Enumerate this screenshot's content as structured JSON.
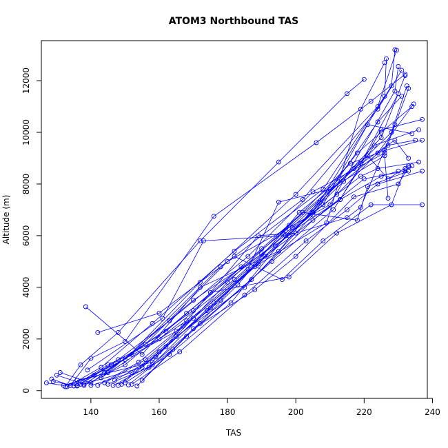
{
  "chart_data": {
    "type": "line",
    "title": "ATOM3 Northbound TAS",
    "xlabel": "TAS",
    "ylabel": "Altitude (m)",
    "xlim": [
      125.5,
      238.5
    ],
    "ylim": [
      -300,
      13550
    ],
    "xticks": [
      "140",
      "160",
      "180",
      "200",
      "220",
      "240"
    ],
    "xtick_values": [
      140,
      160,
      180,
      200,
      220,
      240
    ],
    "yticks": [
      "0",
      "2000",
      "4000",
      "6000",
      "8000",
      "10000",
      "12000"
    ],
    "ytick_values": [
      0,
      2000,
      4000,
      6000,
      8000,
      10000,
      12000
    ],
    "series_color": "#0000ff",
    "marker": "open-circle",
    "series": [
      {
        "x": [
          127,
          132,
          145,
          170,
          198,
          225,
          232
        ],
        "y": [
          300,
          200,
          700,
          3500,
          6000,
          9800,
          12200
        ]
      },
      {
        "x": [
          128.5,
          134,
          150,
          172,
          200,
          224,
          229.5
        ],
        "y": [
          450,
          200,
          1200,
          4200,
          7600,
          11000,
          13180
        ]
      },
      {
        "x": [
          129,
          136,
          155,
          175,
          205,
          228,
          229
        ],
        "y": [
          350,
          180,
          900,
          3200,
          6900,
          11800,
          13200
        ]
      },
      {
        "x": [
          130,
          138,
          152,
          178,
          208,
          226,
          226.5
        ],
        "y": [
          600,
          250,
          1400,
          4800,
          7800,
          11400,
          12850
        ]
      },
      {
        "x": [
          131,
          140,
          156,
          180,
          210,
          229,
          230
        ],
        "y": [
          700,
          300,
          1800,
          5000,
          7200,
          11600,
          12550
        ]
      },
      {
        "x": [
          132.5,
          137,
          148,
          172,
          195,
          215,
          220
        ],
        "y": [
          150,
          1000,
          2250,
          5800,
          8850,
          11500,
          12050
        ]
      },
      {
        "x": [
          133,
          143,
          158,
          182,
          202,
          224,
          231
        ],
        "y": [
          150,
          900,
          2600,
          5400,
          7400,
          10900,
          12400
        ]
      },
      {
        "x": [
          134,
          140,
          150,
          176,
          206,
          222,
          232
        ],
        "y": [
          200,
          1250,
          1900,
          6750,
          9600,
          11200,
          12250
        ]
      },
      {
        "x": [
          135,
          145,
          160,
          182,
          207,
          228,
          232.5
        ],
        "y": [
          180,
          1000,
          2000,
          4300,
          7300,
          10000,
          11800
        ]
      },
      {
        "x": [
          136,
          148,
          163,
          186,
          205,
          226,
          233
        ],
        "y": [
          200,
          1200,
          2700,
          5200,
          7700,
          9200,
          11700
        ]
      },
      {
        "x": [
          137,
          146,
          162,
          184,
          197,
          219,
          230
        ],
        "y": [
          250,
          1000,
          2300,
          4800,
          6200,
          8800,
          11500
        ]
      },
      {
        "x": [
          138,
          150,
          168,
          190,
          212,
          224,
          234.5
        ],
        "y": [
          200,
          1000,
          3000,
          5300,
          7600,
          9200,
          11100
        ]
      },
      {
        "x": [
          138.5,
          155,
          172,
          195,
          218,
          225,
          234
        ],
        "y": [
          3250,
          1400,
          4000,
          5400,
          9200,
          10000,
          11000
        ]
      },
      {
        "x": [
          140,
          152,
          165,
          185,
          205,
          224,
          231
        ],
        "y": [
          200,
          700,
          2100,
          4000,
          6800,
          10400,
          11400
        ]
      },
      {
        "x": [
          142,
          154,
          167,
          188,
          209,
          219,
          226
        ],
        "y": [
          200,
          1100,
          2500,
          4800,
          6500,
          10900,
          12700
        ]
      },
      {
        "x": [
          144,
          156,
          170,
          191,
          213,
          225,
          237
        ],
        "y": [
          300,
          1200,
          2800,
          5200,
          7400,
          10100,
          10500
        ]
      },
      {
        "x": [
          145,
          157,
          172,
          193,
          211,
          223,
          236
        ],
        "y": [
          250,
          900,
          2600,
          5000,
          7000,
          9500,
          10100
        ]
      },
      {
        "x": [
          146.5,
          158,
          174,
          194,
          208,
          221,
          234
        ],
        "y": [
          200,
          1000,
          3100,
          5600,
          7200,
          10300,
          9950
        ]
      },
      {
        "x": [
          147,
          159,
          176,
          189,
          214,
          227,
          235
        ],
        "y": [
          400,
          1300,
          3400,
          4900,
          8100,
          9500,
          9700
        ]
      },
      {
        "x": [
          148,
          160,
          178,
          196,
          216,
          226,
          237
        ],
        "y": [
          200,
          1500,
          3500,
          6100,
          8800,
          9300,
          9700
        ]
      },
      {
        "x": [
          149,
          162,
          180,
          198,
          217,
          229,
          233
        ],
        "y": [
          250,
          1700,
          4200,
          6400,
          8600,
          9700,
          9000
        ]
      },
      {
        "x": [
          150,
          163,
          181,
          199,
          219,
          224,
          236
        ],
        "y": [
          300,
          1400,
          3400,
          6300,
          8300,
          8600,
          8850
        ]
      },
      {
        "x": [
          151,
          164,
          183,
          201,
          221,
          227,
          233
        ],
        "y": [
          220,
          1600,
          4100,
          6900,
          9100,
          8200,
          8700
        ]
      },
      {
        "x": [
          152,
          166,
          185,
          203,
          215,
          224,
          237
        ],
        "y": [
          250,
          1500,
          3700,
          5800,
          7000,
          8000,
          8500
        ]
      },
      {
        "x": [
          153.5,
          168,
          187,
          205,
          220,
          232,
          234
        ],
        "y": [
          180,
          2100,
          4300,
          6600,
          8200,
          8500,
          8700
        ]
      },
      {
        "x": [
          155,
          170,
          188,
          200,
          217,
          230,
          233
        ],
        "y": [
          400,
          2400,
          3900,
          5200,
          7500,
          8000,
          8650
        ]
      },
      {
        "x": [
          142,
          160,
          182,
          196,
          208,
          222,
          237
        ],
        "y": [
          2250,
          3000,
          5200,
          4300,
          5800,
          7200,
          7200
        ]
      },
      {
        "x": [
          136,
          158,
          175,
          198,
          212,
          228,
          232
        ],
        "y": [
          400,
          1100,
          3800,
          4400,
          6100,
          7200,
          8600
        ]
      },
      {
        "x": [
          139,
          161,
          173,
          197,
          213,
          225,
          230
        ],
        "y": [
          800,
          2800,
          5800,
          6000,
          7400,
          8300,
          8500
        ]
      },
      {
        "x": [
          141,
          165,
          186,
          195,
          210,
          226,
          227
        ],
        "y": [
          600,
          2300,
          4700,
          7300,
          7800,
          9100,
          7450
        ]
      },
      {
        "x": [
          143,
          168,
          189,
          200,
          215,
          219,
          229
        ],
        "y": [
          500,
          2700,
          6000,
          6100,
          6700,
          7100,
          10300
        ]
      },
      {
        "x": [
          144,
          170,
          190,
          202,
          218,
          221,
          233
        ],
        "y": [
          700,
          3100,
          5500,
          6900,
          6600,
          7900,
          8500
        ]
      }
    ]
  }
}
